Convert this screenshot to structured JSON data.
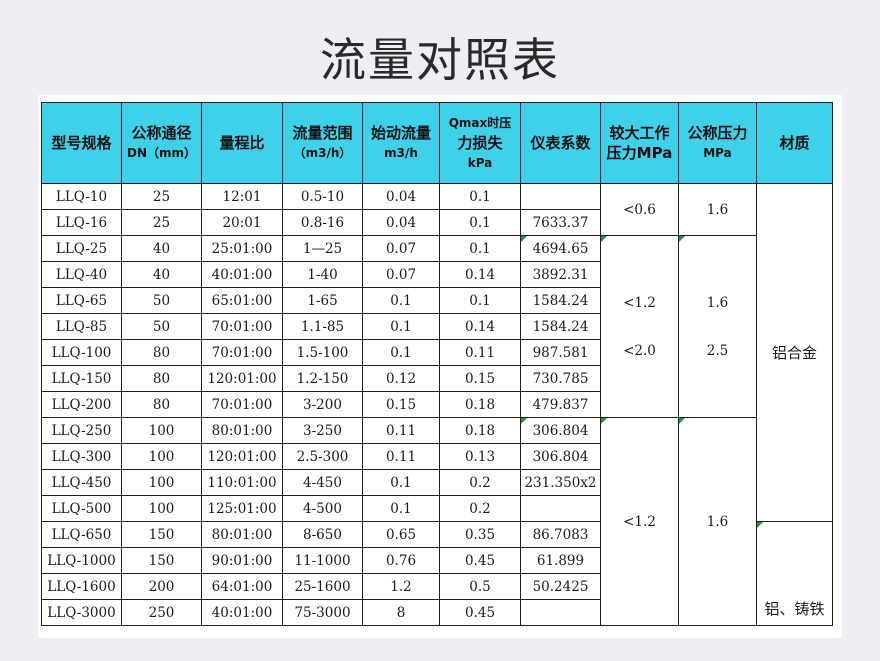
{
  "title": "流量对照表",
  "headers": {
    "model": "型号规格",
    "nominal_dia_line1": "公称通径",
    "nominal_dia_line2": "DN（mm）",
    "turndown": "量程比",
    "flow_range_line1": "流量范围",
    "flow_range_line2": "（m3/h）",
    "start_flow_line1": "始动流量",
    "start_flow_line2": "m3/h",
    "pressure_loss_line1": "Qmax时压",
    "pressure_loss_line2": "力损失",
    "pressure_loss_line3": "kPa",
    "coefficient": "仪表系数",
    "max_pressure_line1": "较大工作",
    "max_pressure_line2": "压力MPa",
    "nominal_pressure_line1": "公称压力",
    "nominal_pressure_line2": "MPa",
    "material": "材质"
  },
  "rows": [
    {
      "model": "LLQ-10",
      "dn": "25",
      "ratio": "12:01",
      "range": "0.5-10",
      "start": "0.04",
      "loss": "0.1",
      "coef": ""
    },
    {
      "model": "LLQ-16",
      "dn": "25",
      "ratio": "20:01",
      "range": "0.8-16",
      "start": "0.04",
      "loss": "0.1",
      "coef": "7633.37"
    },
    {
      "model": "LLQ-25",
      "dn": "40",
      "ratio": "25:01:00",
      "range": "1—25",
      "start": "0.07",
      "loss": "0.1",
      "coef": "4694.65"
    },
    {
      "model": "LLQ-40",
      "dn": "40",
      "ratio": "40:01:00",
      "range": "1-40",
      "start": "0.07",
      "loss": "0.14",
      "coef": "3892.31"
    },
    {
      "model": "LLQ-65",
      "dn": "50",
      "ratio": "65:01:00",
      "range": "1-65",
      "start": "0.1",
      "loss": "0.1",
      "coef": "1584.24"
    },
    {
      "model": "LLQ-85",
      "dn": "50",
      "ratio": "70:01:00",
      "range": "1.1-85",
      "start": "0.1",
      "loss": "0.14",
      "coef": "1584.24"
    },
    {
      "model": "LLQ-100",
      "dn": "80",
      "ratio": "70:01:00",
      "range": "1.5-100",
      "start": "0.1",
      "loss": "0.11",
      "coef": "987.581"
    },
    {
      "model": "LLQ-150",
      "dn": "80",
      "ratio": "120:01:00",
      "range": "1.2-150",
      "start": "0.12",
      "loss": "0.15",
      "coef": "730.785"
    },
    {
      "model": "LLQ-200",
      "dn": "80",
      "ratio": "70:01:00",
      "range": "3-200",
      "start": "0.15",
      "loss": "0.18",
      "coef": "479.837"
    },
    {
      "model": "LLQ-250",
      "dn": "100",
      "ratio": "80:01:00",
      "range": "3-250",
      "start": "0.11",
      "loss": "0.18",
      "coef": "306.804"
    },
    {
      "model": "LLQ-300",
      "dn": "100",
      "ratio": "120:01:00",
      "range": "2.5-300",
      "start": "0.11",
      "loss": "0.13",
      "coef": "306.804"
    },
    {
      "model": "LLQ-450",
      "dn": "100",
      "ratio": "110:01:00",
      "range": "4-450",
      "start": "0.1",
      "loss": "0.2",
      "coef": "231.350x2"
    },
    {
      "model": "LLQ-500",
      "dn": "100",
      "ratio": "125:01:00",
      "range": "4-500",
      "start": "0.1",
      "loss": "0.2",
      "coef": ""
    },
    {
      "model": "LLQ-650",
      "dn": "150",
      "ratio": "80:01:00",
      "range": "8-650",
      "start": "0.65",
      "loss": "0.35",
      "coef": "86.7083"
    },
    {
      "model": "LLQ-1000",
      "dn": "150",
      "ratio": "90:01:00",
      "range": "11-1000",
      "start": "0.76",
      "loss": "0.45",
      "coef": "61.899"
    },
    {
      "model": "LLQ-1600",
      "dn": "200",
      "ratio": "64:01:00",
      "range": "25-1600",
      "start": "1.2",
      "loss": "0.5",
      "coef": "50.2425"
    },
    {
      "model": "LLQ-3000",
      "dn": "250",
      "ratio": "40:01:00",
      "range": "75-3000",
      "start": "8",
      "loss": "0.45",
      "coef": ""
    }
  ],
  "groups": {
    "g1_max_pressure": "<0.6",
    "g1_nominal_pressure": "1.6",
    "g2_max_pressure_a": "<1.2",
    "g2_max_pressure_b": "<2.0",
    "g2_nominal_pressure_a": "1.6",
    "g2_nominal_pressure_b": "2.5",
    "g3_max_pressure": "<1.2",
    "g3_nominal_pressure": "1.6",
    "material_1": "铝合金",
    "material_2": "铝、铸铁"
  }
}
